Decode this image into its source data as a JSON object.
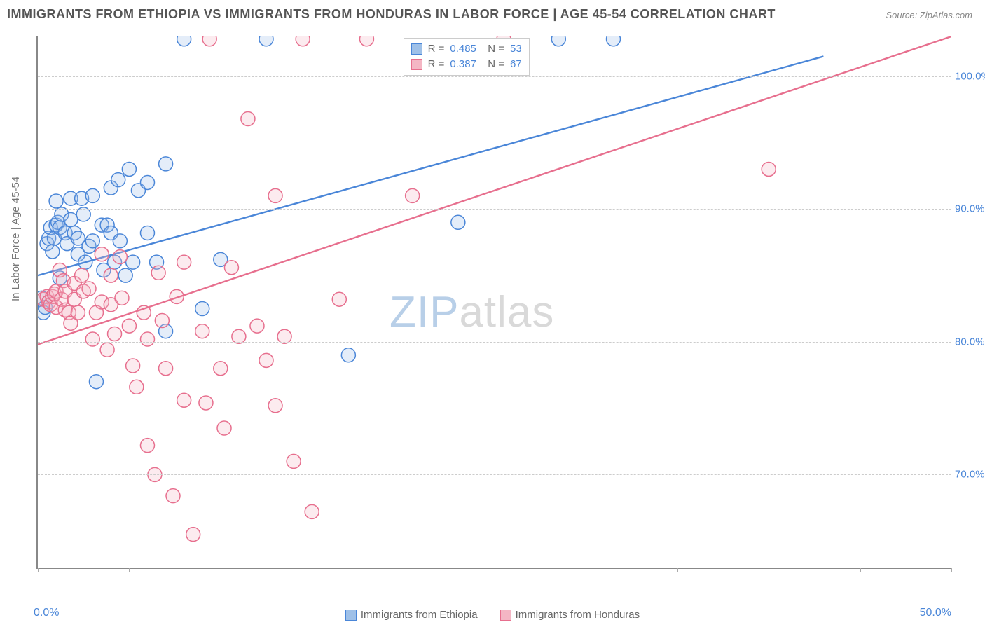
{
  "chart": {
    "type": "scatter",
    "title": "IMMIGRANTS FROM ETHIOPIA VS IMMIGRANTS FROM HONDURAS IN LABOR FORCE | AGE 45-54 CORRELATION CHART",
    "source_label": "Source: ZipAtlas.com",
    "ylabel": "In Labor Force | Age 45-54",
    "background_color": "#ffffff",
    "grid_color": "#cccccc",
    "axis_color": "#888888",
    "title_fontsize": 18,
    "title_color": "#555555",
    "label_color": "#777777",
    "tick_label_color": "#4a86d8",
    "xlim": [
      0,
      50
    ],
    "ylim": [
      63,
      103
    ],
    "x_ticks": [
      0,
      5,
      10,
      15,
      20,
      25,
      30,
      35,
      40,
      45,
      50
    ],
    "x_tick_labels": {
      "0": "0.0%",
      "50": "50.0%"
    },
    "y_ticks": [
      70,
      80,
      90,
      100
    ],
    "y_tick_labels": {
      "70": "70.0%",
      "80": "80.0%",
      "90": "90.0%",
      "100": "100.0%"
    },
    "marker_radius": 10,
    "marker_stroke_width": 1.5,
    "marker_fill_opacity": 0.28,
    "line_width": 2.4,
    "watermark": {
      "text_a": "ZIP",
      "text_b": "atlas"
    },
    "series": [
      {
        "name": "Immigrants from Ethiopia",
        "color_stroke": "#4a86d8",
        "color_fill": "#9ec0e8",
        "R": "0.485",
        "N": "53",
        "trend": {
          "x1": 0,
          "y1": 85.0,
          "x2": 43,
          "y2": 101.5
        },
        "points": [
          [
            0.2,
            83.3
          ],
          [
            0.3,
            82.2
          ],
          [
            0.4,
            82.6
          ],
          [
            0.5,
            87.4
          ],
          [
            0.6,
            87.8
          ],
          [
            0.7,
            88.6
          ],
          [
            0.8,
            86.8
          ],
          [
            0.9,
            87.8
          ],
          [
            1.0,
            88.8
          ],
          [
            1.0,
            90.6
          ],
          [
            1.1,
            89.0
          ],
          [
            1.2,
            88.6
          ],
          [
            1.2,
            84.8
          ],
          [
            1.3,
            89.6
          ],
          [
            1.5,
            88.2
          ],
          [
            1.6,
            87.4
          ],
          [
            1.8,
            89.2
          ],
          [
            1.8,
            90.8
          ],
          [
            2.0,
            88.2
          ],
          [
            2.2,
            86.6
          ],
          [
            2.2,
            87.8
          ],
          [
            2.4,
            90.8
          ],
          [
            2.5,
            89.6
          ],
          [
            2.6,
            86.0
          ],
          [
            2.8,
            87.2
          ],
          [
            3.0,
            91.0
          ],
          [
            3.0,
            87.6
          ],
          [
            3.2,
            77.0
          ],
          [
            3.5,
            88.8
          ],
          [
            3.6,
            85.4
          ],
          [
            3.8,
            88.8
          ],
          [
            4.0,
            91.6
          ],
          [
            4.0,
            88.2
          ],
          [
            4.2,
            86.0
          ],
          [
            4.4,
            92.2
          ],
          [
            4.5,
            87.6
          ],
          [
            4.8,
            85.0
          ],
          [
            5.0,
            93.0
          ],
          [
            5.2,
            86.0
          ],
          [
            5.5,
            91.4
          ],
          [
            6.0,
            92.0
          ],
          [
            6.0,
            88.2
          ],
          [
            6.5,
            86.0
          ],
          [
            7.0,
            80.8
          ],
          [
            7.0,
            93.4
          ],
          [
            8.0,
            102.8
          ],
          [
            9.0,
            82.5
          ],
          [
            10.0,
            86.2
          ],
          [
            12.5,
            102.8
          ],
          [
            17.0,
            79.0
          ],
          [
            23.0,
            89.0
          ],
          [
            28.5,
            102.8
          ],
          [
            31.5,
            102.8
          ]
        ]
      },
      {
        "name": "Immigrants from Honduras",
        "color_stroke": "#e76f8e",
        "color_fill": "#f4b6c4",
        "R": "0.387",
        "N": "67",
        "trend": {
          "x1": 0,
          "y1": 79.8,
          "x2": 50,
          "y2": 103.0
        },
        "points": [
          [
            0.3,
            83.2
          ],
          [
            0.5,
            83.4
          ],
          [
            0.6,
            83.0
          ],
          [
            0.7,
            82.8
          ],
          [
            0.8,
            83.4
          ],
          [
            0.9,
            83.6
          ],
          [
            1.0,
            82.6
          ],
          [
            1.0,
            83.8
          ],
          [
            1.2,
            85.4
          ],
          [
            1.3,
            83.2
          ],
          [
            1.4,
            84.6
          ],
          [
            1.5,
            82.4
          ],
          [
            1.5,
            83.8
          ],
          [
            1.7,
            82.2
          ],
          [
            1.8,
            81.4
          ],
          [
            2.0,
            84.4
          ],
          [
            2.0,
            83.2
          ],
          [
            2.2,
            82.2
          ],
          [
            2.4,
            85.0
          ],
          [
            2.5,
            83.8
          ],
          [
            2.8,
            84.0
          ],
          [
            3.0,
            80.2
          ],
          [
            3.2,
            82.2
          ],
          [
            3.5,
            86.6
          ],
          [
            3.5,
            83.0
          ],
          [
            3.8,
            79.4
          ],
          [
            4.0,
            85.0
          ],
          [
            4.0,
            82.8
          ],
          [
            4.2,
            80.6
          ],
          [
            4.5,
            86.4
          ],
          [
            4.6,
            83.3
          ],
          [
            5.0,
            81.2
          ],
          [
            5.2,
            78.2
          ],
          [
            5.4,
            76.6
          ],
          [
            5.8,
            82.2
          ],
          [
            6.0,
            72.2
          ],
          [
            6.0,
            80.2
          ],
          [
            6.4,
            70.0
          ],
          [
            6.6,
            85.2
          ],
          [
            6.8,
            81.6
          ],
          [
            7.0,
            78.0
          ],
          [
            7.4,
            68.4
          ],
          [
            7.6,
            83.4
          ],
          [
            8.0,
            75.6
          ],
          [
            8.0,
            86.0
          ],
          [
            8.5,
            65.5
          ],
          [
            9.0,
            80.8
          ],
          [
            9.2,
            75.4
          ],
          [
            9.4,
            102.8
          ],
          [
            10.0,
            78.0
          ],
          [
            10.2,
            73.5
          ],
          [
            10.6,
            85.6
          ],
          [
            11.0,
            80.4
          ],
          [
            11.5,
            96.8
          ],
          [
            12.0,
            81.2
          ],
          [
            12.5,
            78.6
          ],
          [
            13.0,
            91.0
          ],
          [
            13.0,
            75.2
          ],
          [
            13.5,
            80.4
          ],
          [
            14.0,
            71.0
          ],
          [
            14.5,
            102.8
          ],
          [
            15.0,
            67.2
          ],
          [
            16.5,
            83.2
          ],
          [
            18.0,
            102.8
          ],
          [
            20.5,
            91.0
          ],
          [
            25.5,
            102.8
          ],
          [
            40.0,
            93.0
          ]
        ]
      }
    ]
  }
}
